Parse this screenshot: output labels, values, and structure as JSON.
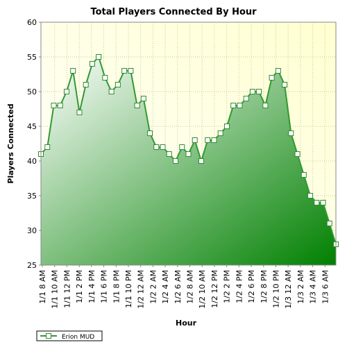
{
  "chart_data": {
    "type": "area",
    "title": "Total Players Connected By Hour",
    "xlabel": "Hour",
    "ylabel": "Players Connected",
    "ylim": [
      25,
      60
    ],
    "yticks": [
      25,
      30,
      35,
      40,
      45,
      50,
      55,
      60
    ],
    "grid": true,
    "legend_position": "bottom-left",
    "colors": {
      "plot_bg_top_right": "#ffffd0",
      "plot_bg_bottom_left": "#ffffff",
      "grid": "#c8c8a0",
      "line": "#2f9a2f",
      "fill_light": "#ffffff",
      "fill_dark": "#008000",
      "marker_fill": "#ffffff",
      "marker_stroke": "#2f8a2f"
    },
    "x_labels": [
      "1/1 8 AM",
      "1/1 10 AM",
      "1/1 12 PM",
      "1/1 2 PM",
      "1/1 4 PM",
      "1/1 6 PM",
      "1/1 8 PM",
      "1/1 10 PM",
      "1/2 12 AM",
      "1/2 2 AM",
      "1/2 4 AM",
      "1/2 6 AM",
      "1/2 8 AM",
      "1/2 10 AM",
      "1/2 12 PM",
      "1/2 2 PM",
      "1/2 4 PM",
      "1/2 6 PM",
      "1/2 8 PM",
      "1/2 10 PM",
      "1/3 12 AM",
      "1/3 2 AM",
      "1/3 4 AM",
      "1/3 6 AM"
    ],
    "series": [
      {
        "name": "Erion MUD",
        "values": [
          41,
          42,
          48,
          48,
          50,
          53,
          47,
          51,
          54,
          55,
          52,
          50,
          51,
          53,
          53,
          48,
          49,
          44,
          42,
          42,
          41,
          40,
          42,
          41,
          43,
          40,
          43,
          43,
          44,
          45,
          48,
          48,
          49,
          50,
          50,
          48,
          52,
          53,
          51,
          44,
          41,
          38,
          35,
          34,
          34,
          31,
          28
        ]
      }
    ]
  }
}
